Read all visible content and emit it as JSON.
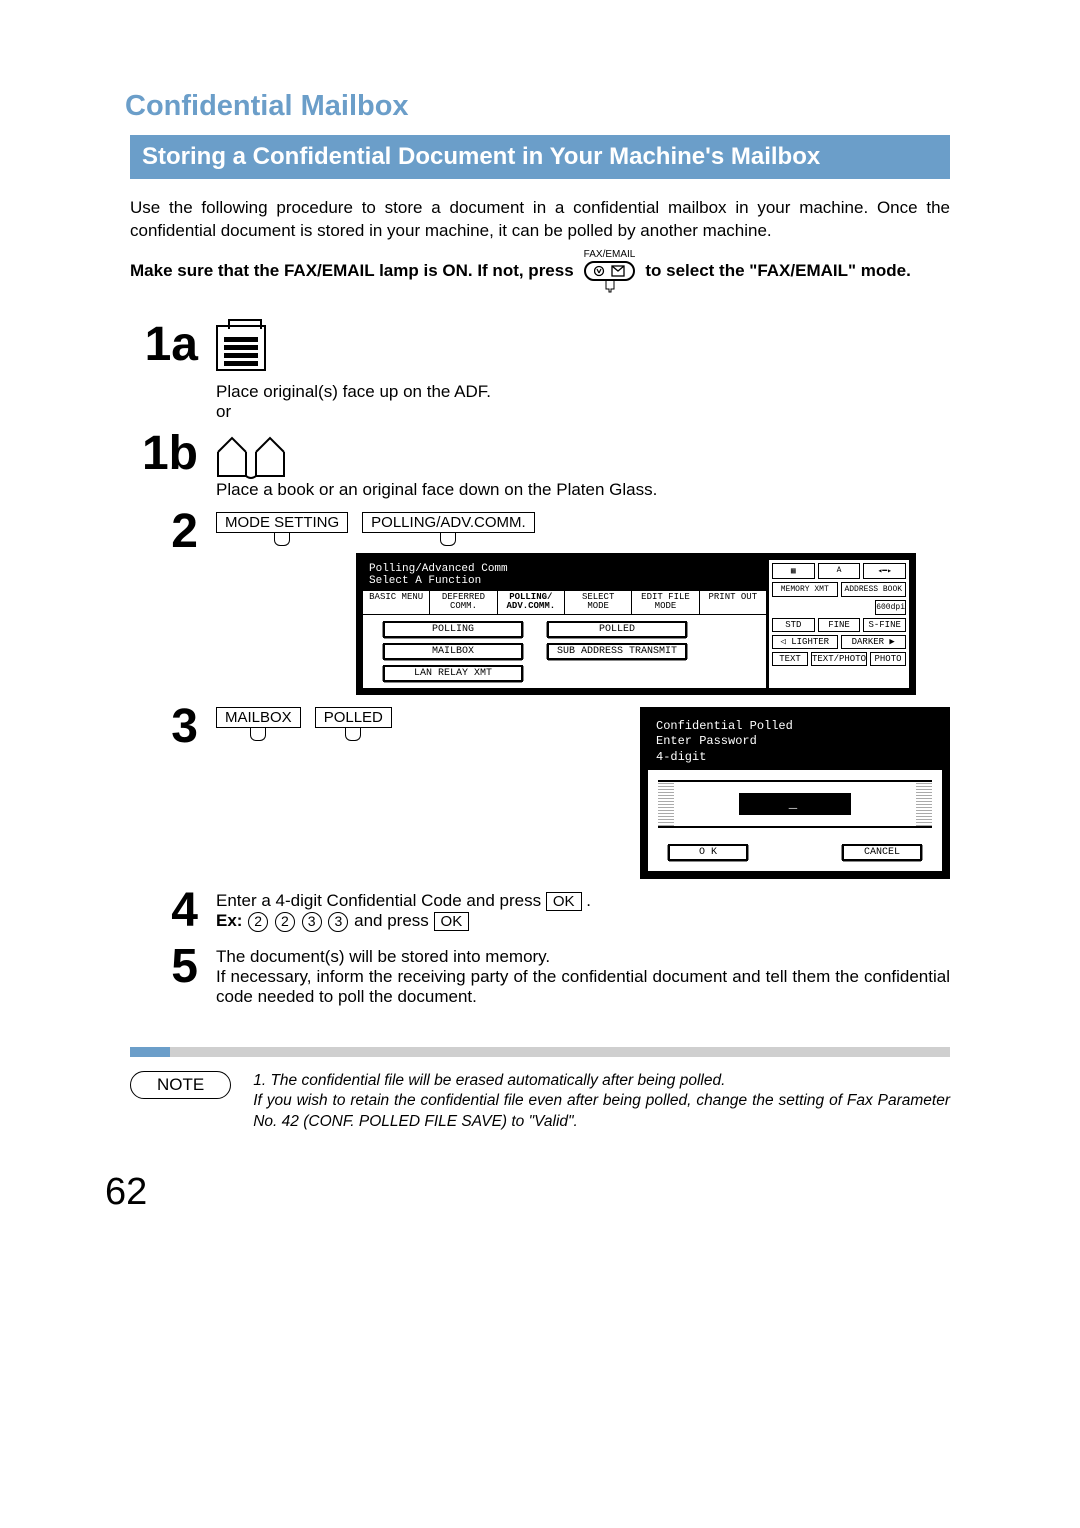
{
  "section_title": "Confidential Mailbox",
  "subsection_title": "Storing a Confidential Document in Your Machine's Mailbox",
  "intro": "Use the following procedure to store a document in a confidential mailbox in your machine. Once the confidential document is stored in your machine, it can be polled by another machine.",
  "lamp_instruction_pre": "Make sure that the FAX/EMAIL lamp is ON.  If not, press",
  "lamp_instruction_post": "to select the \"FAX/EMAIL\" mode.",
  "fax_email_label": "FAX/EMAIL",
  "steps": {
    "s1a": {
      "num": "1a",
      "text": "Place original(s) face up on the ADF.",
      "or": "or"
    },
    "s1b": {
      "num": "1b",
      "text": "Place a book or an original face down on the Platen Glass."
    },
    "s2": {
      "num": "2",
      "btn1": "MODE SETTING",
      "btn2": "POLLING/ADV.COMM."
    },
    "s3": {
      "num": "3",
      "btn1": "MAILBOX",
      "btn2": "POLLED"
    },
    "s4": {
      "num": "4",
      "text_pre": "Enter a 4-digit Confidential Code and press ",
      "ex_label": "Ex:",
      "digits": [
        "2",
        "2",
        "3",
        "3"
      ],
      "and_press": " and press ",
      "ok": "OK"
    },
    "s5": {
      "num": "5",
      "line1": "The document(s) will be stored into memory.",
      "line2": "If necessary, inform the receiving party of the confidential document and tell them the confidential code needed to poll the document."
    }
  },
  "screen1": {
    "header_line1": "Polling/Advanced Comm",
    "header_line2": "Select A Function",
    "tabs": [
      "BASIC MENU",
      "DEFERRED COMM.",
      "POLLING/ ADV.COMM.",
      "SELECT MODE",
      "EDIT FILE MODE",
      "PRINT OUT"
    ],
    "left_buttons": [
      "POLLING",
      "MAILBOX",
      "LAN RELAY XMT"
    ],
    "right_buttons": [
      "POLLED",
      "SUB ADDRESS TRANSMIT"
    ],
    "side_top": [
      "MEMORY XMT",
      "ADDRESS BOOK"
    ],
    "side_res": [
      "STD",
      "FINE",
      "S-FINE"
    ],
    "side_res_top": "600dpi",
    "side_density": [
      "LIGHTER",
      "DARKER"
    ],
    "side_type": [
      "TEXT",
      "TEXT/PHOTO",
      "PHOTO"
    ]
  },
  "screen2": {
    "title": "Confidential Polled",
    "prompt1": "Enter Password",
    "prompt2": "4-digit",
    "value": "_",
    "ok": "O K",
    "cancel": "CANCEL"
  },
  "note_label": "NOTE",
  "note_text": "1. The confidential file will be erased automatically after being polled.\nIf you wish to retain the confidential file even after being polled, change the setting of Fax Parameter No. 42 (CONF. POLLED FILE SAVE) to \"Valid\".",
  "page_number": "62",
  "colors": {
    "accent": "#6b9ec9",
    "grey": "#cfcfcf"
  }
}
